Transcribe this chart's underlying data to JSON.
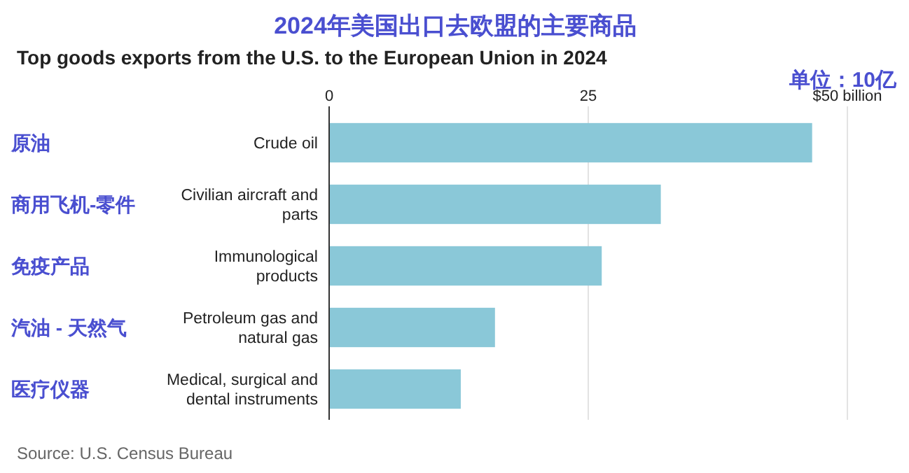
{
  "chart_data": {
    "type": "bar",
    "orientation": "horizontal",
    "title": "2024年美国出口去欧盟的主要商品",
    "subtitle": "Top goods exports from the U.S. to the European Union in 2024",
    "categories": [
      "Crude oil",
      "Civilian aircraft and parts",
      "Immunological products",
      "Petroleum gas and natural gas",
      "Medical, surgical and dental instruments"
    ],
    "values": [
      46.6,
      32.0,
      26.3,
      16.0,
      12.7
    ],
    "color": "#8ac8d8",
    "xlim": [
      0,
      50
    ],
    "xticks": [
      0,
      25,
      {
        "value": 50,
        "label": "$50 billion"
      }
    ],
    "grid": "x",
    "annotations": [
      "单位：10亿",
      "原油",
      "商用飞机-零件",
      "免疫产品",
      "汽油 - 天然气",
      "医疗仪器",
      "Source: U.S. Census Bureau"
    ]
  }
}
